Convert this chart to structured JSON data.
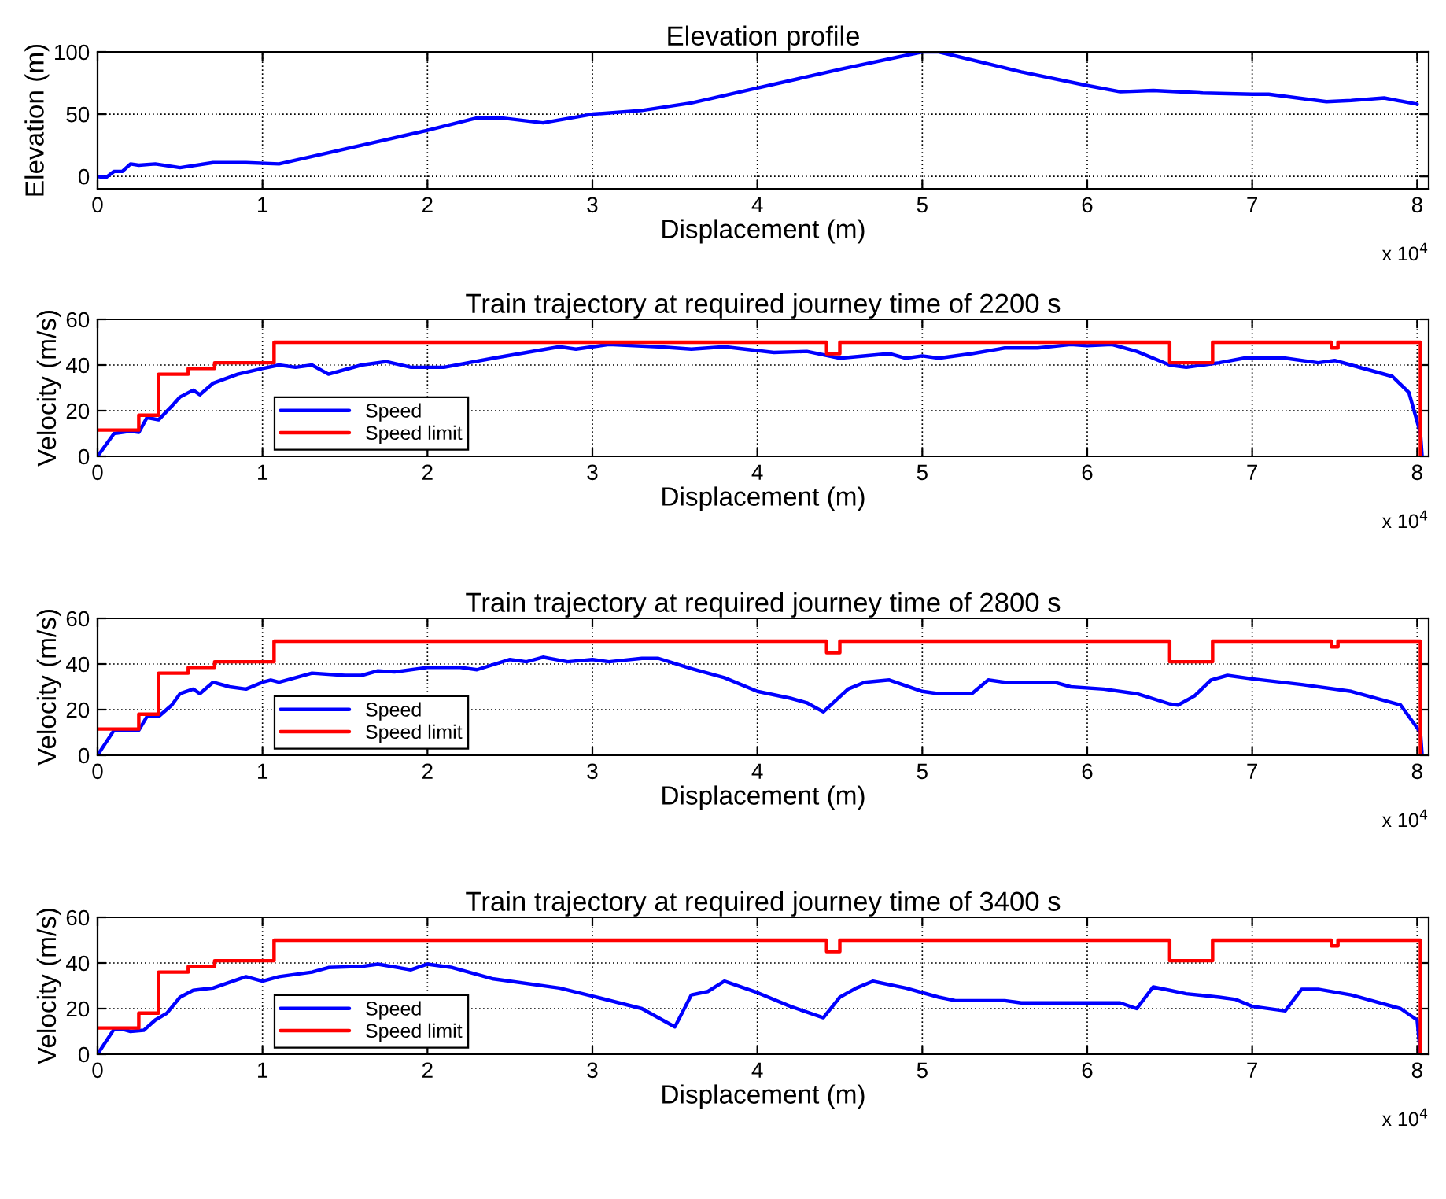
{
  "chart_data": [
    {
      "type": "line",
      "title": "Elevation profile",
      "xlabel": "Displacement (m)",
      "ylabel": "Elevation (m)",
      "annotations": [
        "x 10$^{4}$"
      ],
      "xlim": [
        0,
        8.07
      ],
      "xticks": [
        0,
        1,
        2,
        3,
        4,
        5,
        6,
        7,
        8
      ],
      "ylim": [
        -10,
        100
      ],
      "yticks": [
        0,
        50,
        100
      ],
      "grid": true,
      "legend": false,
      "series": [
        {
          "color": "#0000ff",
          "x": [
            0,
            0.05,
            0.1,
            0.15,
            0.2,
            0.25,
            0.35,
            0.5,
            0.7,
            0.9,
            1.1,
            2.0,
            2.3,
            2.45,
            2.7,
            3.0,
            3.3,
            3.6,
            4.0,
            4.5,
            5.0,
            5.1,
            5.6,
            6.0,
            6.2,
            6.4,
            6.7,
            7.0,
            7.1,
            7.45,
            7.6,
            7.8,
            8.0
          ],
          "values": [
            0,
            -1,
            4,
            4,
            10,
            9,
            10,
            7,
            11,
            11,
            10,
            37,
            47,
            47,
            43,
            50,
            53,
            59,
            71,
            86,
            100,
            100,
            84,
            73,
            68,
            69,
            67,
            66,
            66,
            60,
            61,
            63,
            58
          ]
        }
      ]
    },
    {
      "type": "line",
      "title": "Train trajectory at required journey time of 2200 s",
      "xlabel": "Displacement (m)",
      "ylabel": "Velocity (m/s)",
      "annotations": [
        "x 10$^{4}$"
      ],
      "xlim": [
        0,
        8.07
      ],
      "xticks": [
        0,
        1,
        2,
        3,
        4,
        5,
        6,
        7,
        8
      ],
      "ylim": [
        0,
        60
      ],
      "yticks": [
        0,
        20,
        40,
        60
      ],
      "grid": true,
      "legend": "bottom left",
      "series": [
        {
          "name": "Speed",
          "color": "#0000ff",
          "x": [
            0,
            0.1,
            0.2,
            0.25,
            0.3,
            0.37,
            0.45,
            0.5,
            0.58,
            0.62,
            0.7,
            0.85,
            1.0,
            1.1,
            1.2,
            1.3,
            1.4,
            1.6,
            1.75,
            1.9,
            2.1,
            2.4,
            2.6,
            2.8,
            2.9,
            3.1,
            3.4,
            3.6,
            3.8,
            4.1,
            4.3,
            4.5,
            4.8,
            4.9,
            5.0,
            5.1,
            5.3,
            5.5,
            5.7,
            5.9,
            6.0,
            6.15,
            6.3,
            6.5,
            6.6,
            6.8,
            6.95,
            7.2,
            7.4,
            7.5,
            7.6,
            7.85,
            7.95,
            8.02,
            8.03
          ],
          "values": [
            0,
            10,
            11,
            10.5,
            17,
            16,
            22,
            26,
            29,
            27,
            32,
            36,
            38.5,
            40,
            39,
            40,
            36,
            40,
            41.5,
            39,
            39,
            43,
            45.5,
            48,
            47,
            49,
            48,
            47,
            48,
            45.5,
            46,
            43,
            45,
            43,
            44,
            43,
            45,
            47.5,
            47.5,
            49,
            48.5,
            49,
            46,
            40,
            39,
            41,
            43,
            43,
            41,
            42,
            40,
            35,
            28,
            10,
            0
          ]
        },
        {
          "name": "Speed limit",
          "color": "#ff0000",
          "x": [
            0,
            0.25,
            0.25,
            0.37,
            0.37,
            0.55,
            0.55,
            0.71,
            0.71,
            1.07,
            1.07,
            4.42,
            4.42,
            4.5,
            4.5,
            6.5,
            6.5,
            6.76,
            6.76,
            7.48,
            7.48,
            7.52,
            7.52,
            8.02,
            8.02
          ],
          "values": [
            11.5,
            11.5,
            18,
            18,
            36,
            36,
            38.5,
            38.5,
            41,
            41,
            50,
            50,
            45,
            45,
            50,
            50,
            41,
            41,
            50,
            50,
            47.5,
            47.5,
            50,
            50,
            0
          ]
        }
      ]
    },
    {
      "type": "line",
      "title": "Train trajectory at required journey time of 2800 s",
      "xlabel": "Displacement (m)",
      "ylabel": "Velocity (m/s)",
      "annotations": [
        "x 10$^{4}$"
      ],
      "xlim": [
        0,
        8.07
      ],
      "xticks": [
        0,
        1,
        2,
        3,
        4,
        5,
        6,
        7,
        8
      ],
      "ylim": [
        0,
        60
      ],
      "yticks": [
        0,
        20,
        40,
        60
      ],
      "grid": true,
      "legend": "bottom left",
      "series": [
        {
          "name": "Speed",
          "color": "#0000ff",
          "x": [
            0,
            0.1,
            0.25,
            0.3,
            0.37,
            0.45,
            0.5,
            0.58,
            0.62,
            0.7,
            0.8,
            0.9,
            1.0,
            1.05,
            1.1,
            1.3,
            1.5,
            1.6,
            1.7,
            1.8,
            2.0,
            2.2,
            2.3,
            2.5,
            2.6,
            2.7,
            2.85,
            3.0,
            3.1,
            3.3,
            3.4,
            3.6,
            3.8,
            4.0,
            4.2,
            4.3,
            4.4,
            4.55,
            4.65,
            4.8,
            5.0,
            5.1,
            5.3,
            5.4,
            5.5,
            5.8,
            5.9,
            6.1,
            6.3,
            6.5,
            6.55,
            6.65,
            6.75,
            6.85,
            7.0,
            7.3,
            7.6,
            7.8,
            7.9,
            8.02,
            8.03
          ],
          "values": [
            0,
            11,
            11,
            17,
            17,
            22,
            27,
            29,
            27,
            32,
            30,
            29,
            32,
            33,
            32,
            36,
            35,
            35,
            37,
            36.5,
            38.5,
            38.5,
            37.5,
            42,
            41,
            43,
            41,
            42,
            41,
            42.5,
            42.5,
            38,
            34,
            28,
            25,
            23,
            19,
            29,
            32,
            33,
            28,
            27,
            27,
            33,
            32,
            32,
            30,
            29,
            27,
            22.5,
            22,
            26,
            33,
            35,
            33.5,
            31,
            28,
            24,
            22,
            10,
            0
          ]
        },
        {
          "name": "Speed limit",
          "color": "#ff0000",
          "x": [
            0,
            0.25,
            0.25,
            0.37,
            0.37,
            0.55,
            0.55,
            0.71,
            0.71,
            1.07,
            1.07,
            4.42,
            4.42,
            4.5,
            4.5,
            6.5,
            6.5,
            6.76,
            6.76,
            7.48,
            7.48,
            7.52,
            7.52,
            8.02,
            8.02
          ],
          "values": [
            11.5,
            11.5,
            18,
            18,
            36,
            36,
            38.5,
            38.5,
            41,
            41,
            50,
            50,
            45,
            45,
            50,
            50,
            41,
            41,
            50,
            50,
            47.5,
            47.5,
            50,
            50,
            0
          ]
        }
      ]
    },
    {
      "type": "line",
      "title": "Train trajectory at required journey time of 3400 s",
      "xlabel": "Displacement (m)",
      "ylabel": "Velocity (m/s)",
      "annotations": [
        "x 10$^{4}$"
      ],
      "xlim": [
        0,
        8.07
      ],
      "xticks": [
        0,
        1,
        2,
        3,
        4,
        5,
        6,
        7,
        8
      ],
      "ylim": [
        0,
        60
      ],
      "yticks": [
        0,
        20,
        40,
        60
      ],
      "grid": true,
      "legend": "bottom left",
      "series": [
        {
          "name": "Speed",
          "color": "#0000ff",
          "x": [
            0,
            0.1,
            0.15,
            0.2,
            0.28,
            0.35,
            0.42,
            0.5,
            0.58,
            0.7,
            0.9,
            1.0,
            1.1,
            1.3,
            1.4,
            1.6,
            1.7,
            1.9,
            2.0,
            2.15,
            2.4,
            2.8,
            3.0,
            3.3,
            3.5,
            3.6,
            3.7,
            3.8,
            4.0,
            4.2,
            4.4,
            4.5,
            4.6,
            4.7,
            4.9,
            5.1,
            5.2,
            5.5,
            5.6,
            6.2,
            6.3,
            6.4,
            6.5,
            6.6,
            6.8,
            6.9,
            7.0,
            7.2,
            7.3,
            7.4,
            7.6,
            7.9,
            8.0,
            8.02
          ],
          "values": [
            0,
            11,
            11,
            10,
            10.5,
            15,
            18,
            25,
            28,
            29,
            34,
            32,
            34,
            36,
            38,
            38.5,
            39.5,
            37,
            39.5,
            38,
            33,
            29,
            25.5,
            20,
            12,
            26,
            27.5,
            32,
            27,
            21,
            16,
            25,
            29,
            32,
            29,
            25,
            23.5,
            23.5,
            22.5,
            22.5,
            20,
            29.5,
            28,
            26.5,
            25,
            24,
            21,
            19,
            28.5,
            28.5,
            26,
            20,
            15,
            0
          ]
        },
        {
          "name": "Speed limit",
          "color": "#ff0000",
          "x": [
            0,
            0.25,
            0.25,
            0.37,
            0.37,
            0.55,
            0.55,
            0.71,
            0.71,
            1.07,
            1.07,
            4.42,
            4.42,
            4.5,
            4.5,
            6.5,
            6.5,
            6.76,
            6.76,
            7.48,
            7.48,
            7.52,
            7.52,
            8.02,
            8.02
          ],
          "values": [
            11.5,
            11.5,
            18,
            18,
            36,
            36,
            38.5,
            38.5,
            41,
            41,
            50,
            50,
            45,
            45,
            50,
            50,
            41,
            41,
            50,
            50,
            47.5,
            47.5,
            50,
            50,
            0
          ]
        }
      ]
    }
  ]
}
